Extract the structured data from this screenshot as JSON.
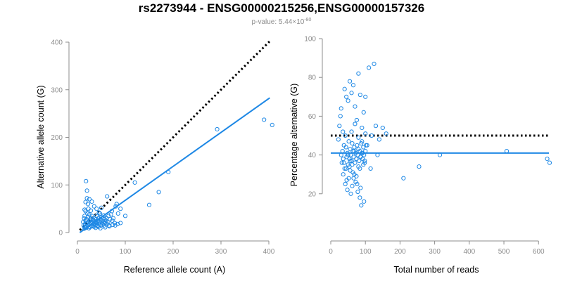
{
  "chart_data": [
    {
      "type": "scatter",
      "title": "rs2273944 - ENSG00000215256,ENSG00000157326",
      "subtitle": "p-value: 5.44×10",
      "subtitle_exponent": "-80",
      "xlabel": "Reference allele count (A)",
      "ylabel": "Alternative allele count (G)",
      "xlim": [
        0,
        400
      ],
      "ylim": [
        0,
        400
      ],
      "xticks": [
        "0",
        "100",
        "200",
        "300",
        "400"
      ],
      "yticks": [
        "0",
        "100",
        "200",
        "300",
        "400"
      ],
      "grid": false,
      "point_color": "#1e88e5",
      "regression_line": {
        "color": "#1e88e5",
        "style": "solid",
        "x": [
          5,
          402
        ],
        "y": [
          0,
          283
        ]
      },
      "reference_line": {
        "color": "#000000",
        "style": "dotted",
        "x": [
          5,
          405
        ],
        "y": [
          5,
          405
        ]
      },
      "series": [
        {
          "x": [
            12,
            13,
            14,
            15,
            15,
            16,
            17,
            17,
            18,
            19,
            20,
            21,
            22,
            22,
            23,
            24,
            25,
            25,
            26,
            27,
            28,
            29,
            30,
            30,
            31,
            32,
            33,
            34,
            35,
            36,
            36,
            37,
            38,
            39,
            40,
            41,
            42,
            43,
            44,
            45,
            46,
            47,
            48,
            49,
            50,
            51,
            52,
            53,
            54,
            55,
            56,
            57,
            58,
            60,
            61,
            62,
            64,
            65,
            66,
            68,
            70,
            72,
            73,
            75,
            78,
            80,
            82,
            85,
            90,
            100,
            18,
            20,
            25,
            30,
            35,
            40,
            20,
            22,
            17,
            15,
            45,
            55,
            28,
            50,
            62,
            14,
            16,
            19,
            24,
            26,
            33,
            38,
            42,
            44,
            48,
            58,
            67,
            74,
            79,
            84,
            90,
            120,
            150,
            170,
            190,
            292,
            390,
            407
          ],
          "y": [
            22,
            15,
            30,
            12,
            35,
            18,
            25,
            45,
            10,
            28,
            20,
            40,
            15,
            32,
            50,
            22,
            18,
            38,
            12,
            26,
            30,
            20,
            14,
            35,
            22,
            28,
            18,
            25,
            12,
            30,
            20,
            22,
            16,
            28,
            35,
            20,
            15,
            25,
            30,
            18,
            22,
            40,
            28,
            15,
            32,
            20,
            25,
            18,
            30,
            22,
            15,
            28,
            20,
            25,
            30,
            18,
            22,
            35,
            15,
            28,
            38,
            45,
            25,
            30,
            20,
            55,
            60,
            40,
            50,
            35,
            108,
            88,
            70,
            65,
            55,
            50,
            72,
            60,
            64,
            48,
            42,
            36,
            46,
            52,
            76,
            8,
            10,
            12,
            9,
            11,
            13,
            10,
            14,
            12,
            9,
            11,
            13,
            16,
            15,
            18,
            20,
            105,
            58,
            85,
            127,
            217,
            237,
            226
          ]
        }
      ]
    },
    {
      "type": "scatter",
      "xlabel": "Total number of reads",
      "ylabel": "Percentage alternative (G)",
      "xlim": [
        0,
        630
      ],
      "ylim": [
        0,
        100
      ],
      "xticks": [
        "0",
        "100",
        "200",
        "300",
        "400",
        "500",
        "600"
      ],
      "yticks": [
        "20",
        "40",
        "60",
        "80",
        "100"
      ],
      "grid": false,
      "point_color": "#1e88e5",
      "mean_line": {
        "color": "#1e88e5",
        "style": "solid",
        "y": 41
      },
      "reference_line": {
        "color": "#000000",
        "style": "dotted",
        "y": 50
      },
      "series": [
        {
          "x": [
            22,
            25,
            28,
            30,
            32,
            34,
            36,
            38,
            40,
            42,
            44,
            46,
            48,
            50,
            52,
            54,
            56,
            58,
            60,
            62,
            64,
            66,
            68,
            70,
            72,
            74,
            76,
            78,
            80,
            82,
            84,
            86,
            88,
            90,
            92,
            94,
            96,
            98,
            100,
            102,
            30,
            35,
            40,
            45,
            50,
            55,
            60,
            65,
            70,
            75,
            80,
            85,
            90,
            95,
            100,
            42,
            48,
            52,
            58,
            62,
            68,
            72,
            78,
            84,
            88,
            36,
            46,
            56,
            66,
            76,
            86,
            96,
            54,
            64,
            74,
            84,
            94,
            60,
            70,
            80,
            90,
            100,
            110,
            118,
            125,
            130,
            140,
            150,
            160,
            38,
            44,
            50,
            56,
            62,
            68,
            74,
            80,
            86,
            92,
            98,
            105,
            115,
            135,
            210,
            255,
            315,
            508,
            625,
            632
          ],
          "y": [
            48,
            55,
            60,
            40,
            36,
            42,
            38,
            45,
            33,
            50,
            44,
            39,
            41,
            35,
            47,
            38,
            43,
            40,
            37,
            46,
            42,
            39,
            44,
            36,
            41,
            38,
            45,
            40,
            43,
            37,
            42,
            39,
            46,
            41,
            38,
            44,
            40,
            36,
            42,
            45,
            64,
            52,
            74,
            70,
            68,
            78,
            72,
            76,
            65,
            58,
            82,
            71,
            54,
            62,
            70,
            25,
            22,
            28,
            20,
            24,
            30,
            26,
            21,
            18,
            14,
            30,
            27,
            32,
            28,
            25,
            23,
            16,
            34,
            31,
            29,
            33,
            35,
            52,
            56,
            49,
            47,
            51,
            85,
            50,
            87,
            55,
            48,
            54,
            51,
            36,
            33,
            40,
            37,
            35,
            42,
            38,
            34,
            39,
            41,
            37,
            45,
            33,
            40,
            28,
            34,
            40,
            42,
            38,
            36
          ]
        }
      ]
    }
  ]
}
